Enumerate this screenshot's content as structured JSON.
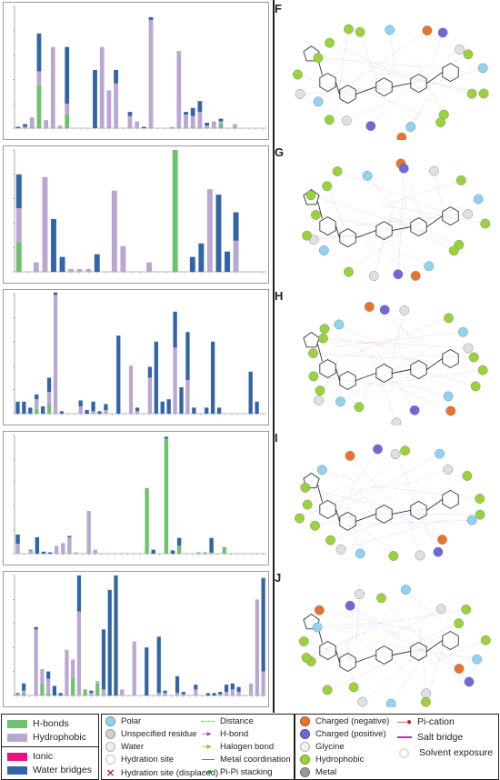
{
  "colors": {
    "hbond": "#6ec16e",
    "hydrophobic": "#b9a7d2",
    "ionic": "#e8137a",
    "water": "#3264a8"
  },
  "panels": [
    {
      "letter": "F"
    },
    {
      "letter": "G"
    },
    {
      "letter": "H"
    },
    {
      "letter": "I"
    },
    {
      "letter": "J"
    }
  ],
  "chart_data": [
    {
      "type": "bar",
      "stacked": true,
      "ylim": [
        0,
        0.9
      ],
      "series": [
        {
          "key": "hbond",
          "values": [
            0,
            0,
            0,
            0.32,
            0,
            0,
            0,
            0.1,
            0,
            0,
            0,
            0,
            0,
            0,
            0,
            0,
            0,
            0,
            0,
            0,
            0,
            0,
            0,
            0,
            0,
            0,
            0,
            0,
            0,
            0.03,
            0,
            0,
            0,
            0,
            0,
            0
          ]
        },
        {
          "key": "hydrophobic",
          "values": [
            0,
            0.01,
            0.08,
            0.1,
            0.06,
            0.6,
            0.02,
            0.08,
            0,
            0,
            0,
            0,
            0.6,
            0.28,
            0.33,
            0,
            0.09,
            0.05,
            0,
            0.8,
            0,
            0,
            0.01,
            0.57,
            0.1,
            0.09,
            0.12,
            0.02,
            0.05,
            0.02,
            0,
            0.03,
            0,
            0,
            0,
            0
          ]
        },
        {
          "key": "water",
          "values": [
            0.01,
            0.02,
            0,
            0.28,
            0,
            0,
            0,
            0.42,
            0,
            0,
            0,
            0.43,
            0,
            0,
            0.1,
            0,
            0.03,
            0,
            0.01,
            0.02,
            0,
            0,
            0,
            0,
            0.02,
            0.06,
            0.08,
            0.02,
            0,
            0.02,
            0,
            0,
            0,
            0,
            0,
            0
          ]
        }
      ]
    },
    {
      "type": "bar",
      "stacked": true,
      "ylim": [
        0,
        0.9
      ],
      "series": [
        {
          "key": "hbond",
          "values": [
            0.22,
            0,
            0,
            0,
            0,
            0,
            0,
            0,
            0,
            0,
            0,
            0,
            0,
            0,
            0,
            0,
            0,
            0,
            0.9,
            0,
            0,
            0,
            0,
            0,
            0,
            0,
            0,
            0,
            0
          ]
        },
        {
          "key": "hydrophobic",
          "values": [
            0.25,
            0,
            0.07,
            0.7,
            0,
            0,
            0.02,
            0.02,
            0.02,
            0,
            0,
            0.6,
            0.19,
            0,
            0,
            0.07,
            0,
            0,
            0,
            0,
            0,
            0,
            0.61,
            0,
            0,
            0.23,
            0,
            0,
            0
          ]
        },
        {
          "key": "water",
          "values": [
            0.25,
            0,
            0,
            0,
            0.39,
            0.11,
            0,
            0,
            0,
            0.13,
            0,
            0,
            0,
            0,
            0,
            0,
            0,
            0,
            0,
            0,
            0.11,
            0.21,
            0,
            0.57,
            0.15,
            0.21,
            0,
            0,
            0
          ]
        }
      ]
    },
    {
      "type": "bar",
      "stacked": true,
      "ylim": [
        0,
        1.0
      ],
      "series": [
        {
          "key": "hbond",
          "values": [
            0,
            0,
            0,
            0.04,
            0,
            0.08,
            0,
            0,
            0,
            0,
            0,
            0,
            0,
            0,
            0,
            0,
            0,
            0,
            0,
            0,
            0,
            0,
            0,
            0,
            0,
            0,
            0,
            0,
            0,
            0,
            0,
            0,
            0,
            0,
            0,
            0,
            0,
            0,
            0,
            0
          ]
        },
        {
          "key": "hydrophobic",
          "values": [
            0,
            0,
            0,
            0.08,
            0,
            0.1,
            0.99,
            0,
            0,
            0,
            0.06,
            0,
            0.02,
            0,
            0.03,
            0,
            0,
            0,
            0.4,
            0.02,
            0,
            0.3,
            0,
            0,
            0,
            0.55,
            0,
            0.28,
            0,
            0,
            0,
            0,
            0,
            0,
            0,
            0,
            0,
            0,
            0,
            0
          ]
        },
        {
          "key": "water",
          "values": [
            0.1,
            0.1,
            0.05,
            0.04,
            0.06,
            0.12,
            0.02,
            0.02,
            0,
            0,
            0.05,
            0.03,
            0.08,
            0.02,
            0.05,
            0,
            0.65,
            0,
            0,
            0.03,
            0,
            0.09,
            0.6,
            0.1,
            0.12,
            0.3,
            0.22,
            0.4,
            0.05,
            0,
            0.05,
            0.6,
            0.05,
            0,
            0,
            0,
            0,
            0.35,
            0.1,
            0
          ]
        }
      ]
    },
    {
      "type": "bar",
      "stacked": true,
      "ylim": [
        0,
        1.8
      ],
      "series": [
        {
          "key": "hbond",
          "values": [
            0,
            0,
            0,
            0,
            0,
            0,
            0,
            0,
            0,
            0,
            0,
            0,
            0,
            0,
            0,
            0,
            0,
            0,
            0,
            0,
            1.0,
            0,
            0,
            1.75,
            0,
            0.12,
            0,
            0,
            0.02,
            0.02,
            0.02,
            0,
            0.1,
            0,
            0,
            0,
            0,
            0,
            0
          ]
        },
        {
          "key": "hydrophobic",
          "values": [
            0.15,
            0,
            0.05,
            0,
            0,
            0,
            0.12,
            0.16,
            0.25,
            0.02,
            0,
            0.65,
            0.06,
            0,
            0,
            0,
            0,
            0,
            0,
            0,
            0,
            0,
            0,
            0,
            0,
            0,
            0,
            0,
            0,
            0,
            0,
            0,
            0,
            0,
            0,
            0,
            0,
            0,
            0
          ]
        },
        {
          "key": "water",
          "values": [
            0.14,
            0,
            0.01,
            0.25,
            0.03,
            0.02,
            0,
            0,
            0.02,
            0,
            0,
            0,
            0,
            0,
            0,
            0,
            0,
            0,
            0,
            0,
            0,
            0.06,
            0,
            0.03,
            0.05,
            0.12,
            0,
            0,
            0,
            0,
            0.22,
            0,
            0,
            0,
            0,
            0,
            0,
            0,
            0
          ]
        }
      ]
    },
    {
      "type": "bar",
      "stacked": true,
      "ylim": [
        0,
        1.0
      ],
      "series": [
        {
          "key": "hbond",
          "values": [
            0,
            0.02,
            0,
            0,
            0.1,
            0.02,
            0,
            0,
            0,
            0.15,
            0,
            0.05,
            0,
            0.1,
            0,
            0,
            0,
            0,
            0,
            0,
            0,
            0,
            0,
            0,
            0,
            0,
            0,
            0,
            0,
            0,
            0,
            0,
            0,
            0,
            0,
            0,
            0,
            0,
            0,
            0,
            0
          ]
        },
        {
          "key": "hydrophobic",
          "values": [
            0.01,
            0.02,
            0,
            0.55,
            0.12,
            0.12,
            0,
            0,
            0.38,
            0.15,
            0.7,
            0,
            0.02,
            0.02,
            0.05,
            0,
            0,
            0.05,
            0,
            0.45,
            0,
            0,
            0,
            0.02,
            0.02,
            0,
            0.02,
            0.01,
            0,
            0.05,
            0,
            0,
            0,
            0.01,
            0.03,
            0.05,
            0.03,
            0,
            0.1,
            0.8,
            0.2
          ]
        },
        {
          "key": "water",
          "values": [
            0.01,
            0.06,
            0,
            0.02,
            0,
            0.06,
            0.08,
            0.02,
            0,
            0,
            0.3,
            0,
            0.02,
            0,
            0.5,
            0.88,
            1.0,
            0,
            0,
            0,
            0,
            0.4,
            0,
            0.47,
            0.02,
            0,
            0.14,
            0.02,
            0,
            0.04,
            0,
            0.02,
            0.02,
            0.02,
            0.06,
            0.05,
            0.04,
            0,
            0,
            0,
            0.78
          ]
        }
      ]
    }
  ],
  "legend": {
    "bar_legend": {
      "hbonds": "H-bonds",
      "hydrophobic": "Hydrophobic",
      "ionic": "Ionic",
      "water_bridges": "Water bridges"
    },
    "symbols_col1": [
      "Polar",
      "Unspecified residue",
      "Water",
      "Hydration site",
      "Hydration site (displaced)"
    ],
    "symbols_col2": [
      "Distance",
      "H-bond",
      "Halogen bond",
      "Metal coordination",
      "Pi-Pi stacking"
    ],
    "residues": [
      "Charged (negative)",
      "Charged (positive)",
      "Glycine",
      "Hydrophobic",
      "Metal"
    ],
    "interactions": [
      "Pi-cation",
      "Salt bridge",
      "Solvent exposure"
    ]
  }
}
